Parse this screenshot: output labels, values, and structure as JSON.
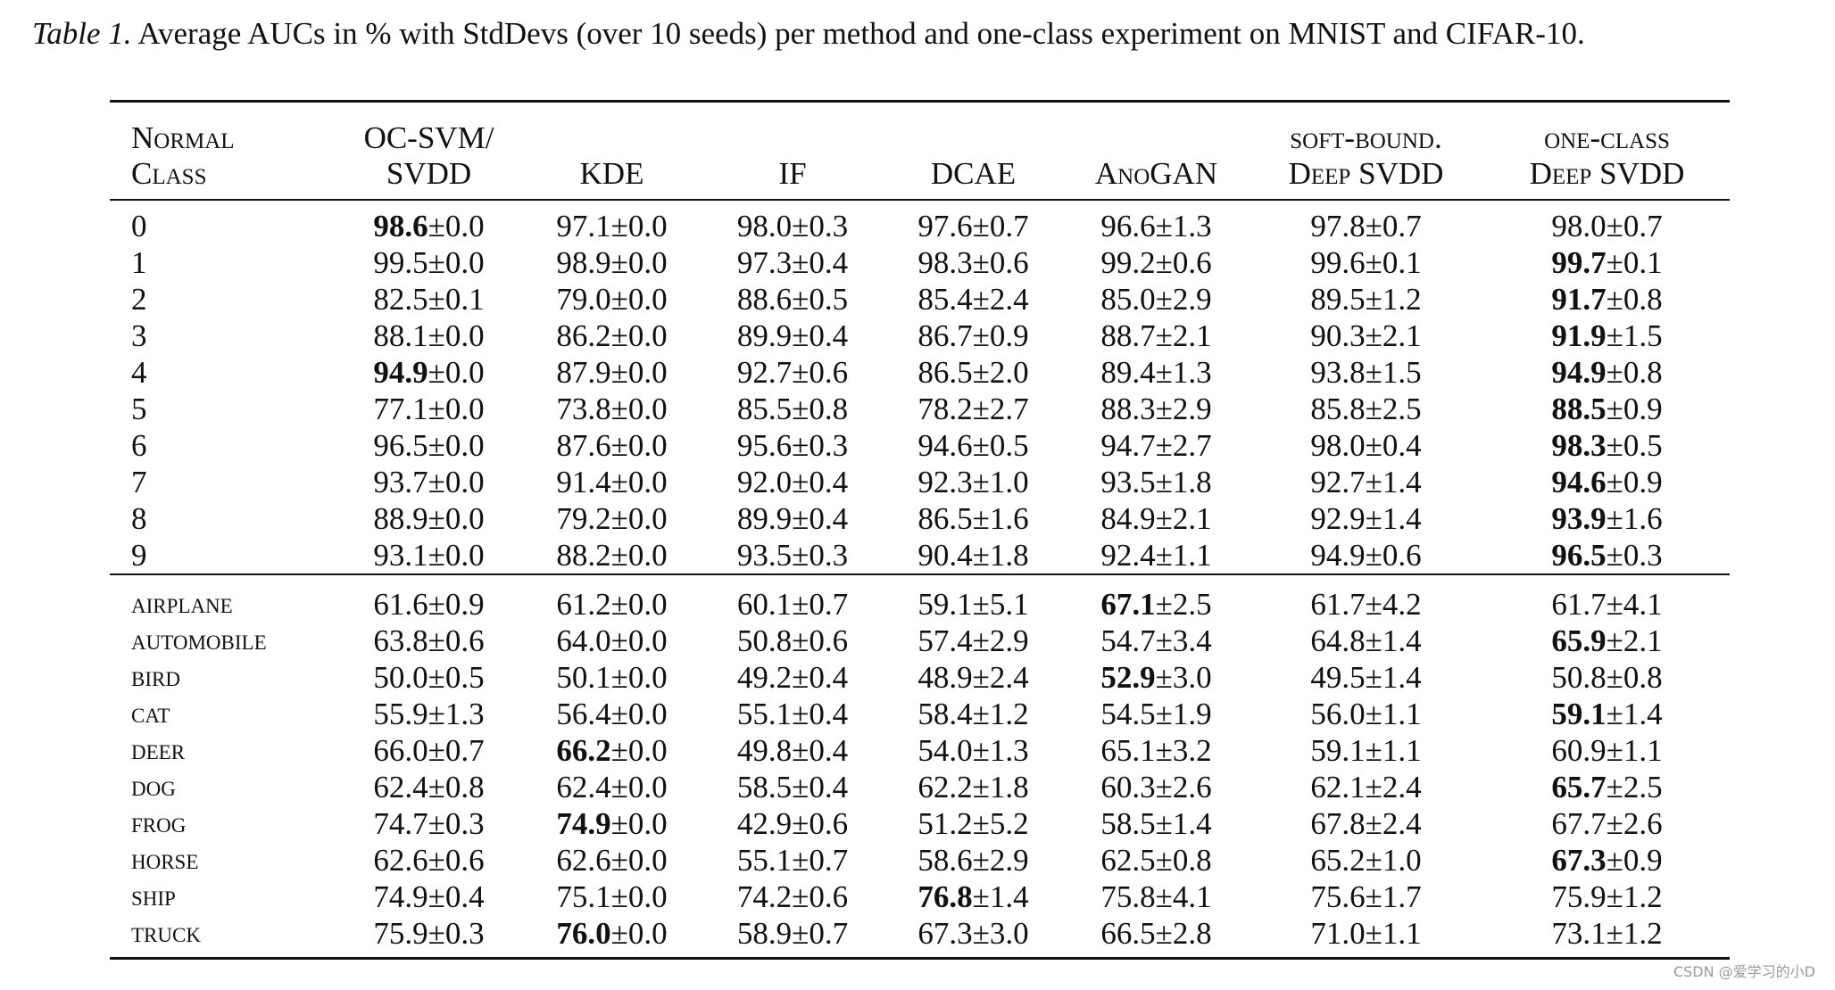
{
  "caption": {
    "label": "Table 1.",
    "text": " Average AUCs in % with StdDevs (over 10 seeds) per method and one-class experiment on MNIST and CIFAR-10."
  },
  "headers": [
    {
      "lines": [
        "Normal",
        "Class"
      ]
    },
    {
      "lines": [
        "OC-SVM/",
        "SVDD"
      ]
    },
    {
      "lines": [
        "KDE"
      ]
    },
    {
      "lines": [
        "IF"
      ]
    },
    {
      "lines": [
        "DCAE"
      ]
    },
    {
      "lines": [
        "AnoGAN"
      ]
    },
    {
      "lines": [
        "soft-bound.",
        "Deep SVDD"
      ]
    },
    {
      "lines": [
        "one-class",
        "Deep SVDD"
      ]
    }
  ],
  "mnist_rows": [
    {
      "cls": "0",
      "cells": [
        {
          "m": "98.6",
          "s": "±0.0",
          "best": true
        },
        {
          "m": "97.1",
          "s": "±0.0"
        },
        {
          "m": "98.0",
          "s": "±0.3"
        },
        {
          "m": "97.6",
          "s": "±0.7"
        },
        {
          "m": "96.6",
          "s": "±1.3"
        },
        {
          "m": "97.8",
          "s": "±0.7"
        },
        {
          "m": "98.0",
          "s": "±0.7"
        }
      ]
    },
    {
      "cls": "1",
      "cells": [
        {
          "m": "99.5",
          "s": "±0.0"
        },
        {
          "m": "98.9",
          "s": "±0.0"
        },
        {
          "m": "97.3",
          "s": "±0.4"
        },
        {
          "m": "98.3",
          "s": "±0.6"
        },
        {
          "m": "99.2",
          "s": "±0.6"
        },
        {
          "m": "99.6",
          "s": "±0.1"
        },
        {
          "m": "99.7",
          "s": "±0.1",
          "best": true
        }
      ]
    },
    {
      "cls": "2",
      "cells": [
        {
          "m": "82.5",
          "s": "±0.1"
        },
        {
          "m": "79.0",
          "s": "±0.0"
        },
        {
          "m": "88.6",
          "s": "±0.5"
        },
        {
          "m": "85.4",
          "s": "±2.4"
        },
        {
          "m": "85.0",
          "s": "±2.9"
        },
        {
          "m": "89.5",
          "s": "±1.2"
        },
        {
          "m": "91.7",
          "s": "±0.8",
          "best": true
        }
      ]
    },
    {
      "cls": "3",
      "cells": [
        {
          "m": "88.1",
          "s": "±0.0"
        },
        {
          "m": "86.2",
          "s": "±0.0"
        },
        {
          "m": "89.9",
          "s": "±0.4"
        },
        {
          "m": "86.7",
          "s": "±0.9"
        },
        {
          "m": "88.7",
          "s": "±2.1"
        },
        {
          "m": "90.3",
          "s": "±2.1"
        },
        {
          "m": "91.9",
          "s": "±1.5",
          "best": true
        }
      ]
    },
    {
      "cls": "4",
      "cells": [
        {
          "m": "94.9",
          "s": "±0.0",
          "best": true
        },
        {
          "m": "87.9",
          "s": "±0.0"
        },
        {
          "m": "92.7",
          "s": "±0.6"
        },
        {
          "m": "86.5",
          "s": "±2.0"
        },
        {
          "m": "89.4",
          "s": "±1.3"
        },
        {
          "m": "93.8",
          "s": "±1.5"
        },
        {
          "m": "94.9",
          "s": "±0.8",
          "best": true
        }
      ]
    },
    {
      "cls": "5",
      "cells": [
        {
          "m": "77.1",
          "s": "±0.0"
        },
        {
          "m": "73.8",
          "s": "±0.0"
        },
        {
          "m": "85.5",
          "s": "±0.8"
        },
        {
          "m": "78.2",
          "s": "±2.7"
        },
        {
          "m": "88.3",
          "s": "±2.9"
        },
        {
          "m": "85.8",
          "s": "±2.5"
        },
        {
          "m": "88.5",
          "s": "±0.9",
          "best": true
        }
      ]
    },
    {
      "cls": "6",
      "cells": [
        {
          "m": "96.5",
          "s": "±0.0"
        },
        {
          "m": "87.6",
          "s": "±0.0"
        },
        {
          "m": "95.6",
          "s": "±0.3"
        },
        {
          "m": "94.6",
          "s": "±0.5"
        },
        {
          "m": "94.7",
          "s": "±2.7"
        },
        {
          "m": "98.0",
          "s": "±0.4"
        },
        {
          "m": "98.3",
          "s": "±0.5",
          "best": true
        }
      ]
    },
    {
      "cls": "7",
      "cells": [
        {
          "m": "93.7",
          "s": "±0.0"
        },
        {
          "m": "91.4",
          "s": "±0.0"
        },
        {
          "m": "92.0",
          "s": "±0.4"
        },
        {
          "m": "92.3",
          "s": "±1.0"
        },
        {
          "m": "93.5",
          "s": "±1.8"
        },
        {
          "m": "92.7",
          "s": "±1.4"
        },
        {
          "m": "94.6",
          "s": "±0.9",
          "best": true
        }
      ]
    },
    {
      "cls": "8",
      "cells": [
        {
          "m": "88.9",
          "s": "±0.0"
        },
        {
          "m": "79.2",
          "s": "±0.0"
        },
        {
          "m": "89.9",
          "s": "±0.4"
        },
        {
          "m": "86.5",
          "s": "±1.6"
        },
        {
          "m": "84.9",
          "s": "±2.1"
        },
        {
          "m": "92.9",
          "s": "±1.4"
        },
        {
          "m": "93.9",
          "s": "±1.6",
          "best": true
        }
      ]
    },
    {
      "cls": "9",
      "cells": [
        {
          "m": "93.1",
          "s": "±0.0"
        },
        {
          "m": "88.2",
          "s": "±0.0"
        },
        {
          "m": "93.5",
          "s": "±0.3"
        },
        {
          "m": "90.4",
          "s": "±1.8"
        },
        {
          "m": "92.4",
          "s": "±1.1"
        },
        {
          "m": "94.9",
          "s": "±0.6"
        },
        {
          "m": "96.5",
          "s": "±0.3",
          "best": true
        }
      ]
    }
  ],
  "cifar_rows": [
    {
      "cls": "airplane",
      "cells": [
        {
          "m": "61.6",
          "s": "±0.9"
        },
        {
          "m": "61.2",
          "s": "±0.0"
        },
        {
          "m": "60.1",
          "s": "±0.7"
        },
        {
          "m": "59.1",
          "s": "±5.1"
        },
        {
          "m": "67.1",
          "s": "±2.5",
          "best": true
        },
        {
          "m": "61.7",
          "s": "±4.2"
        },
        {
          "m": "61.7",
          "s": "±4.1"
        }
      ]
    },
    {
      "cls": "automobile",
      "cells": [
        {
          "m": "63.8",
          "s": "±0.6"
        },
        {
          "m": "64.0",
          "s": "±0.0"
        },
        {
          "m": "50.8",
          "s": "±0.6"
        },
        {
          "m": "57.4",
          "s": "±2.9"
        },
        {
          "m": "54.7",
          "s": "±3.4"
        },
        {
          "m": "64.8",
          "s": "±1.4"
        },
        {
          "m": "65.9",
          "s": "±2.1",
          "best": true
        }
      ]
    },
    {
      "cls": "bird",
      "cells": [
        {
          "m": "50.0",
          "s": "±0.5"
        },
        {
          "m": "50.1",
          "s": "±0.0"
        },
        {
          "m": "49.2",
          "s": "±0.4"
        },
        {
          "m": "48.9",
          "s": "±2.4"
        },
        {
          "m": "52.9",
          "s": "±3.0",
          "best": true
        },
        {
          "m": "49.5",
          "s": "±1.4"
        },
        {
          "m": "50.8",
          "s": "±0.8"
        }
      ]
    },
    {
      "cls": "cat",
      "cells": [
        {
          "m": "55.9",
          "s": "±1.3"
        },
        {
          "m": "56.4",
          "s": "±0.0"
        },
        {
          "m": "55.1",
          "s": "±0.4"
        },
        {
          "m": "58.4",
          "s": "±1.2"
        },
        {
          "m": "54.5",
          "s": "±1.9"
        },
        {
          "m": "56.0",
          "s": "±1.1"
        },
        {
          "m": "59.1",
          "s": "±1.4",
          "best": true
        }
      ]
    },
    {
      "cls": "deer",
      "cells": [
        {
          "m": "66.0",
          "s": "±0.7"
        },
        {
          "m": "66.2",
          "s": "±0.0",
          "best": true
        },
        {
          "m": "49.8",
          "s": "±0.4"
        },
        {
          "m": "54.0",
          "s": "±1.3"
        },
        {
          "m": "65.1",
          "s": "±3.2"
        },
        {
          "m": "59.1",
          "s": "±1.1"
        },
        {
          "m": "60.9",
          "s": "±1.1"
        }
      ]
    },
    {
      "cls": "dog",
      "cells": [
        {
          "m": "62.4",
          "s": "±0.8"
        },
        {
          "m": "62.4",
          "s": "±0.0"
        },
        {
          "m": "58.5",
          "s": "±0.4"
        },
        {
          "m": "62.2",
          "s": "±1.8"
        },
        {
          "m": "60.3",
          "s": "±2.6"
        },
        {
          "m": "62.1",
          "s": "±2.4"
        },
        {
          "m": "65.7",
          "s": "±2.5",
          "best": true
        }
      ]
    },
    {
      "cls": "frog",
      "cells": [
        {
          "m": "74.7",
          "s": "±0.3"
        },
        {
          "m": "74.9",
          "s": "±0.0",
          "best": true
        },
        {
          "m": "42.9",
          "s": "±0.6"
        },
        {
          "m": "51.2",
          "s": "±5.2"
        },
        {
          "m": "58.5",
          "s": "±1.4"
        },
        {
          "m": "67.8",
          "s": "±2.4"
        },
        {
          "m": "67.7",
          "s": "±2.6"
        }
      ]
    },
    {
      "cls": "horse",
      "cells": [
        {
          "m": "62.6",
          "s": "±0.6"
        },
        {
          "m": "62.6",
          "s": "±0.0"
        },
        {
          "m": "55.1",
          "s": "±0.7"
        },
        {
          "m": "58.6",
          "s": "±2.9"
        },
        {
          "m": "62.5",
          "s": "±0.8"
        },
        {
          "m": "65.2",
          "s": "±1.0"
        },
        {
          "m": "67.3",
          "s": "±0.9",
          "best": true
        }
      ]
    },
    {
      "cls": "ship",
      "cells": [
        {
          "m": "74.9",
          "s": "±0.4"
        },
        {
          "m": "75.1",
          "s": "±0.0"
        },
        {
          "m": "74.2",
          "s": "±0.6"
        },
        {
          "m": "76.8",
          "s": "±1.4",
          "best": true
        },
        {
          "m": "75.8",
          "s": "±4.1"
        },
        {
          "m": "75.6",
          "s": "±1.7"
        },
        {
          "m": "75.9",
          "s": "±1.2"
        }
      ]
    },
    {
      "cls": "truck",
      "cells": [
        {
          "m": "75.9",
          "s": "±0.3"
        },
        {
          "m": "76.0",
          "s": "±0.0",
          "best": true
        },
        {
          "m": "58.9",
          "s": "±0.7"
        },
        {
          "m": "67.3",
          "s": "±3.0"
        },
        {
          "m": "66.5",
          "s": "±2.8"
        },
        {
          "m": "71.0",
          "s": "±1.1"
        },
        {
          "m": "73.1",
          "s": "±1.2"
        }
      ]
    }
  ],
  "watermark": "CSDN @爱学习的小D"
}
